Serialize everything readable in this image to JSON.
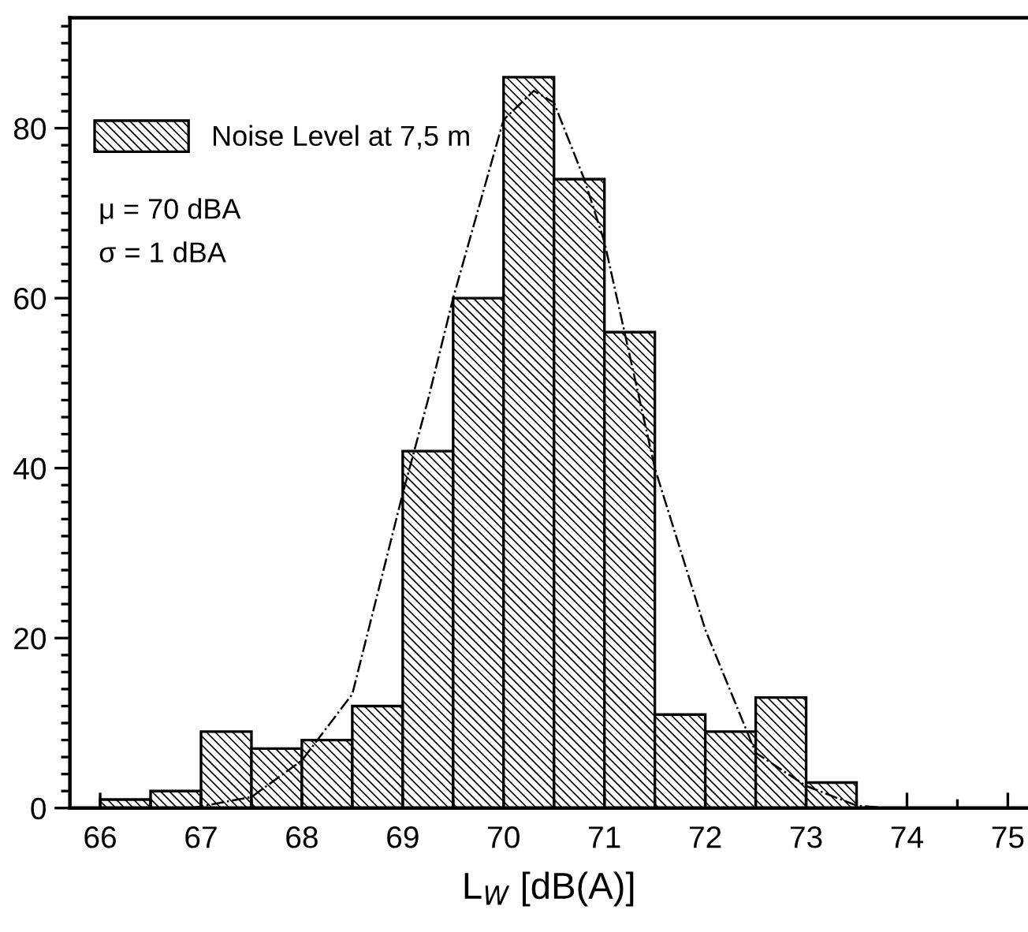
{
  "chart_data": {
    "type": "histogram",
    "xlabel": "L$_{W}$ [dB(A)]",
    "bins": [
      66,
      66.5,
      67,
      67.5,
      68,
      68.5,
      69,
      69.5,
      70,
      70.5,
      71,
      71.5,
      72,
      72.5,
      73,
      73.5
    ],
    "series": [
      {
        "name": "Noise Level at 7,5 m",
        "color": "#000000",
        "values": [
          1,
          2,
          9,
          7,
          8,
          12,
          42,
          60,
          86,
          74,
          56,
          11,
          9,
          13,
          3
        ]
      },
      {
        "type": "line",
        "color": "#000000",
        "line_style": "dashdot",
        "x": [
          66.9,
          67.0,
          67.5,
          68.0,
          68.5,
          69.0,
          69.25,
          69.5,
          70.0,
          70.3,
          70.5,
          70.8,
          71.0,
          71.5,
          72.0,
          72.5,
          73.0,
          73.5,
          73.8
        ],
        "values": [
          0,
          0.2,
          1.3,
          5.6,
          13.4,
          37,
          48,
          60,
          81,
          84.4,
          83,
          74,
          66.6,
          40,
          21,
          6.5,
          2.6,
          0.3,
          0
        ]
      }
    ],
    "annotations": [
      "μ = 70 dBA",
      "σ = 1 dBA"
    ],
    "xlim": [
      65.7,
      75.2
    ],
    "ylim": [
      0,
      93
    ],
    "xticks": [
      66,
      67,
      68,
      69,
      70,
      71,
      72,
      73,
      74,
      75
    ],
    "yticks": [
      0,
      20,
      40,
      60,
      80
    ],
    "legend": "top left",
    "grid": false
  }
}
